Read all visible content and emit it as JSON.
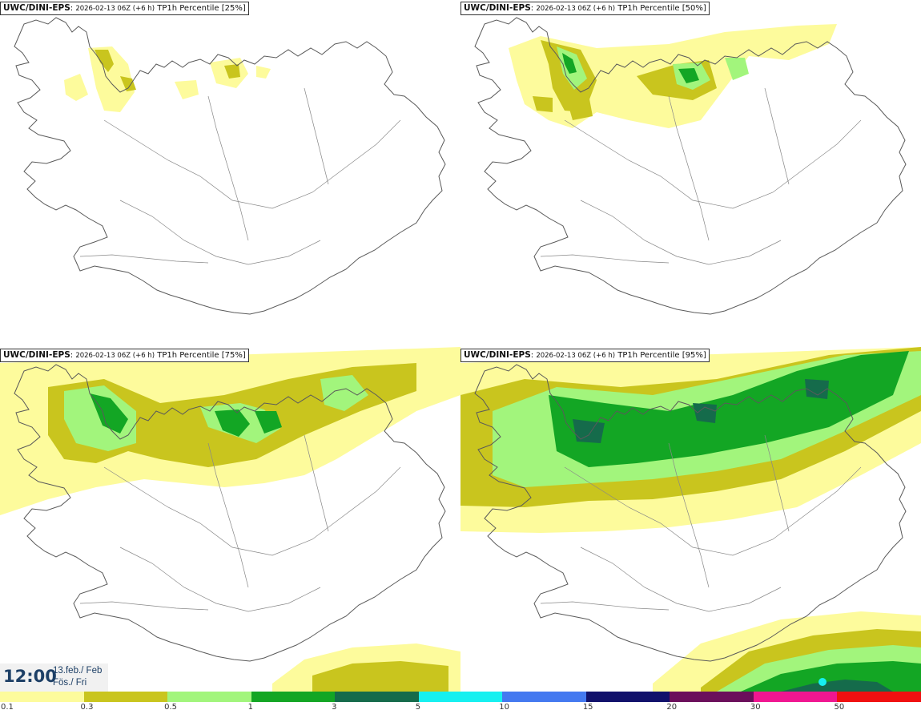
{
  "map_panels": [
    {
      "model": "UWC/DINI-EPS",
      "run": "2026-02-13 06Z (+6 h)",
      "field": "TP1h Percentile [25%]"
    },
    {
      "model": "UWC/DINI-EPS",
      "run": "2026-02-13 06Z (+6 h)",
      "field": "TP1h Percentile [50%]"
    },
    {
      "model": "UWC/DINI-EPS",
      "run": "2026-02-13 06Z (+6 h)",
      "field": "TP1h Percentile [75%]"
    },
    {
      "model": "UWC/DINI-EPS",
      "run": "2026-02-13 06Z (+6 h)",
      "field": "TP1h Percentile [95%]"
    }
  ],
  "valid_time": {
    "time": "12:00",
    "date_line": "13.feb./ Feb",
    "day_line": "Fös./ Fri"
  },
  "legend": {
    "labels": [
      "0.1",
      "0.3",
      "0.5",
      "1",
      "3",
      "5",
      "10",
      "15",
      "20",
      "30",
      "50"
    ],
    "colors": [
      "#fdfb9c",
      "#c9c51e",
      "#a2f57c",
      "#13a624",
      "#156b4b",
      "#16f0f0",
      "#4479f0",
      "#11116b",
      "#6b0f5b",
      "#f01690",
      "#f01010"
    ]
  },
  "map_layers": {
    "land_outline": "Iceland coastline and roads",
    "outline_color": "#555555"
  }
}
